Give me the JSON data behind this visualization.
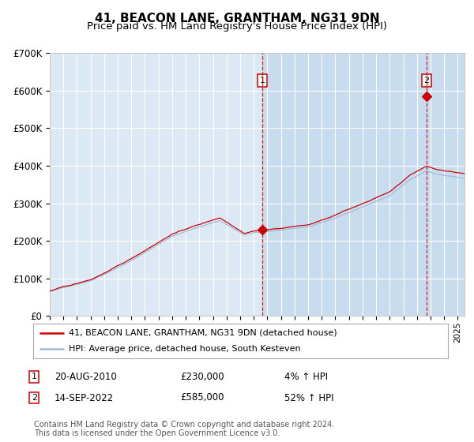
{
  "title": "41, BEACON LANE, GRANTHAM, NG31 9DN",
  "subtitle": "Price paid vs. HM Land Registry's House Price Index (HPI)",
  "ylim": [
    0,
    700000
  ],
  "yticks": [
    0,
    100000,
    200000,
    300000,
    400000,
    500000,
    600000,
    700000
  ],
  "ytick_labels": [
    "£0",
    "£100K",
    "£200K",
    "£300K",
    "£400K",
    "£500K",
    "£600K",
    "£700K"
  ],
  "background_color": "#ffffff",
  "plot_bg_color": "#dce9f5",
  "plot_bg_color2": "#c8dcef",
  "grid_color": "#ffffff",
  "red_line_color": "#cc0000",
  "blue_line_color": "#a0bcd8",
  "title_fontsize": 11,
  "subtitle_fontsize": 9.5,
  "annotation1": {
    "label": "1",
    "date_x": 2010.63,
    "price": 230000,
    "pct": "4% ↑ HPI",
    "date_str": "20-AUG-2010",
    "price_str": "£230,000"
  },
  "annotation2": {
    "label": "2",
    "date_x": 2022.71,
    "price": 585000,
    "pct": "52% ↑ HPI",
    "date_str": "14-SEP-2022",
    "price_str": "£585,000"
  },
  "legend_line1": "41, BEACON LANE, GRANTHAM, NG31 9DN (detached house)",
  "legend_line2": "HPI: Average price, detached house, South Kesteven",
  "footer1": "Contains HM Land Registry data © Crown copyright and database right 2024.",
  "footer2": "This data is licensed under the Open Government Licence v3.0.",
  "xmin": 1995.0,
  "xmax": 2025.5
}
